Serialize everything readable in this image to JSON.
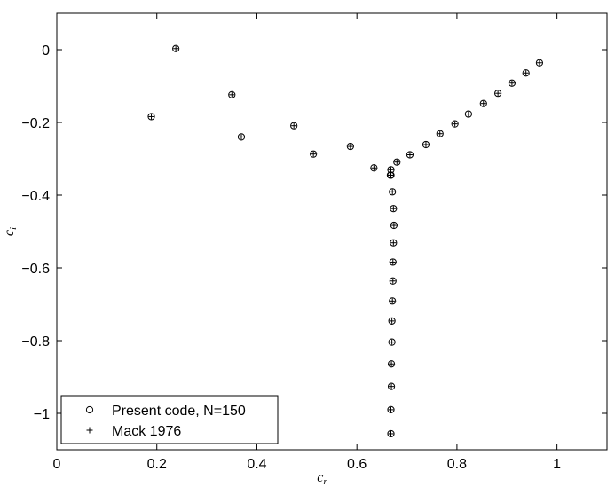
{
  "chart_data": {
    "type": "scatter",
    "xlabel": "c",
    "xlabel_sub": "r",
    "ylabel": "c",
    "ylabel_sub": "i",
    "xlim": [
      0,
      1.1
    ],
    "ylim": [
      -1.1,
      0.1
    ],
    "xticks": [
      0,
      0.2,
      0.4,
      0.6,
      0.8,
      1
    ],
    "xtick_labels": [
      "0",
      "0.2",
      "0.4",
      "0.6",
      "0.8",
      "1"
    ],
    "yticks": [
      0,
      -0.2,
      -0.4,
      -0.6,
      -0.8,
      -1
    ],
    "ytick_labels": [
      "0",
      "−0.2",
      "−0.4",
      "−0.6",
      "−0.8",
      "−1"
    ],
    "grid": false,
    "legend_position": "bottom-left",
    "series": [
      {
        "name": "Present code, N=150",
        "marker": "circle",
        "x": [
          0.189,
          0.238,
          0.35,
          0.369,
          0.474,
          0.513,
          0.587,
          0.634,
          0.667,
          0.671,
          0.673,
          0.674,
          0.673,
          0.672,
          0.672,
          0.671,
          0.67,
          0.67,
          0.669,
          0.669,
          0.668,
          0.668,
          0.668,
          0.668,
          0.68,
          0.706,
          0.738,
          0.766,
          0.796,
          0.823,
          0.853,
          0.882,
          0.91,
          0.938,
          0.965
        ],
        "y": [
          -0.184,
          0.003,
          -0.124,
          -0.24,
          -0.209,
          -0.287,
          -0.266,
          -0.325,
          -0.345,
          -0.391,
          -0.437,
          -0.483,
          -0.531,
          -0.584,
          -0.636,
          -0.691,
          -0.746,
          -0.804,
          -0.864,
          -0.926,
          -0.99,
          -1.056,
          -0.345,
          -0.33,
          -0.309,
          -0.289,
          -0.261,
          -0.231,
          -0.204,
          -0.177,
          -0.148,
          -0.12,
          -0.092,
          -0.064,
          -0.036
        ]
      },
      {
        "name": "Mack 1976",
        "marker": "plus",
        "x": [
          0.189,
          0.238,
          0.35,
          0.369,
          0.474,
          0.513,
          0.587,
          0.634,
          0.667,
          0.671,
          0.673,
          0.674,
          0.673,
          0.672,
          0.672,
          0.671,
          0.67,
          0.67,
          0.669,
          0.669,
          0.668,
          0.668,
          0.668,
          0.668,
          0.68,
          0.706,
          0.738,
          0.766,
          0.796,
          0.823,
          0.853,
          0.882,
          0.91,
          0.938,
          0.965
        ],
        "y": [
          -0.184,
          0.003,
          -0.124,
          -0.24,
          -0.209,
          -0.287,
          -0.266,
          -0.325,
          -0.345,
          -0.391,
          -0.437,
          -0.483,
          -0.531,
          -0.584,
          -0.636,
          -0.691,
          -0.746,
          -0.804,
          -0.864,
          -0.926,
          -0.99,
          -1.056,
          -0.345,
          -0.33,
          -0.309,
          -0.289,
          -0.261,
          -0.231,
          -0.204,
          -0.177,
          -0.148,
          -0.12,
          -0.092,
          -0.064,
          -0.036
        ]
      }
    ]
  }
}
